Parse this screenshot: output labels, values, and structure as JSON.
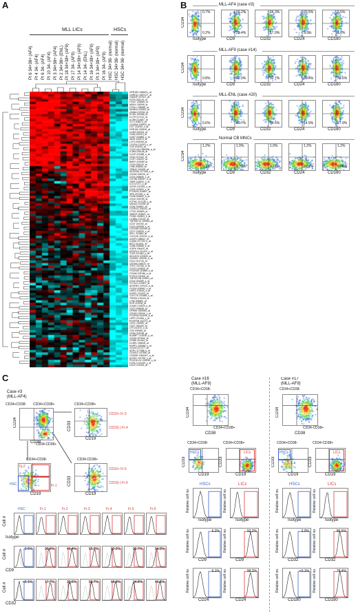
{
  "panelA": {
    "letter": "A",
    "group_mll": "MLL LICs",
    "group_hsc": "HSCs",
    "samples": [
      "Pt 6 34+38+ (AF4)",
      "Pt 4 34- (AF4)",
      "Pt 6 34- (AF4)",
      "Pt 10 34- (AF4)",
      "Pt 3 34+38+ (AF4)",
      "Pt 2 34+38+ (ENL)",
      "Pt 18 34+38+ (AF9)",
      "Pt 17 34- (AF9)",
      "Pt 14 34+38+ (AF9)",
      "Pt 14 34- (ENL)",
      "Pt 16 34+38+ (AF9)",
      "Pt 3 34+38+ (AF9)",
      "Pt 16 34- (AF9)",
      "HSC 34+38- (normal)",
      "HSC 34+38- (normal)",
      "HSC 34+38- (normal)"
    ],
    "genes": [
      "GPR183 1556321_at",
      "CARD11 1557127_at",
      "CMAHP 207671_at",
      "FGF9 239179_at",
      "ITGA7 204889_at",
      "MDK4 228095_at",
      "FCRL1 235988_at",
      "NKMH4 223003_at",
      "LEA6A 219154_at",
      "ECM1 209365_at",
      "IL17R 217412_at",
      "IL1RN 212657_at",
      "FLT3 206674_at",
      "CD300A 209933_at",
      "CD7 214049_x_at",
      "GPR183 205419_at",
      "IL2RA 206341_at",
      "CD84 209113_at",
      "IL6ST 204864_s_at",
      "INGR 228370_at",
      "LCP2 205269_at",
      "CXCR4 211919_s_at",
      "CD9 201005_at",
      "CLEC12A 1552398_a_at",
      "IL3RA 206148_at",
      "IL21R 221658_s_at",
      "CD22 217422_at",
      "CCR7 206337_at",
      "BMP2 205289_at",
      "CD33 206120_at",
      "LY86 205859_at",
      "GRB10 209409_at",
      "ADGRG6 227266_s_at",
      "CD180 206206_at",
      "CD24 208650_s_at",
      "CD79B 205297_s_at",
      "TARP 216920_s_at",
      "IL3 217371_s_at",
      "IGF2R 201393_s_at",
      "CD32 210992_x_at",
      "PTGER4 204897_at",
      "SPN 207005_s_at",
      "CD38 205692_s_at",
      "CD1D 205789_at",
      "PTPRC 207238_s_at",
      "MS4A3 210254_at",
      "CD52 204661_at",
      "FCER1G 204232_at",
      "CTSG 205653_at",
      "HBEGF 203821_at",
      "ITGB2 202803_s_at",
      "LILRB4 210152_at",
      "TNFRSF14 209354_at",
      "CD37 204192_at",
      "CD19 206398_s_at",
      "CSF2RB 205159_at",
      "CD72 215925_s_at",
      "SELL 204563_at",
      "CLEC2D 220132_s_at",
      "ULBP2 238542_at",
      "ICAM4 207194_s_at",
      "BST2 201641_at",
      "CD86 205686_s_at",
      "IGSF6 206420_at",
      "KIR2DL4 211410_x_at",
      "TLR4 221060_s_at",
      "SIGLEC9 220509_at",
      "CD300C 206760_s_at",
      "CD14 201743_at",
      "CRTAM 206914_at",
      "TFRC 207332_s_at",
      "CD274 223834_at",
      "FCGR2B 210889_s_at",
      "ITGAM 205786_s_at",
      "FCRL5 224405_at",
      "TNFSF13B 223501_at",
      "CD44 204489_s_at",
      "FLT3LG 210607_at",
      "ADGRE2 207610_s_at",
      "CD200 209582_s_at",
      "LAIR1 210644_s_at",
      "ULBP1 221323_at",
      "CLEC7A 221698_s_at",
      "TREM1 219434_at",
      "LY96 206584_at",
      "KDR 203934_at",
      "ICAM2 213620_s_at",
      "CD70 206508_at",
      "GPR65 1559263_at",
      "CD163 215049_x_at",
      "FCGR3A 204006_s_at",
      "LEPR 211356_x_at",
      "PDGFRB 202273_at",
      "CD1C 205987_at",
      "CD27 206150_at",
      "LY9 210370_s_at",
      "CD5 206485_at",
      "CD8A 205758_at",
      "SLAMF7 219159_s_at",
      "CD160 207840_at",
      "GZMB 210164_at",
      "IL18R1 206618_at",
      "ENPP1 205066_s_at",
      "CD209 207277_at",
      "NCR1 217088_s_at",
      "CD40LG 207892_at",
      "CD300E 1552457_a_at",
      "KLRD1 207795_s_at",
      "PDCD1LG2 220049_s_at",
      "FCRL2 221239_s_at",
      "CD1E 215784_at"
    ]
  },
  "panelB": {
    "letter": "B",
    "rows": [
      {
        "title": "MLL-AF4 (case #3)",
        "ylabel": "CD34",
        "labels": [
          "Isotype",
          "CD9",
          "CD32",
          "CD24",
          "CD180"
        ],
        "q": [
          [
            "0.7%",
            "0.2%"
          ],
          [
            "69.2%",
            "20.4%"
          ],
          [
            "56.3%",
            "17.9%"
          ],
          [
            "20.5%",
            "5.3%"
          ],
          [
            "5.5%",
            "5.6%"
          ]
        ]
      },
      {
        "title": "MLL-AF9 (case #14)",
        "ylabel": "CD34",
        "labels": [
          "Isotype",
          "CD9",
          "CD32",
          "CD24",
          "CD180"
        ],
        "q": [
          [
            "",
            "0.8%"
          ],
          [
            "",
            "42.0%"
          ],
          [
            "",
            "92.7%"
          ],
          [
            "",
            "99.4%"
          ],
          [
            "",
            "59.6%"
          ]
        ]
      },
      {
        "title": "MLL-ENL (case #20)",
        "ylabel": "CD34",
        "labels": [
          "Isotype",
          "CD9",
          "CD32",
          "CD24",
          "CD180"
        ],
        "q": [
          [
            "",
            "0.6%"
          ],
          [
            "",
            "49.7%"
          ],
          [
            "",
            "54.5%"
          ],
          [
            "",
            "14.9%"
          ],
          [
            "",
            "27.9%"
          ]
        ]
      },
      {
        "title": "Normal CB MNCs",
        "ylabel": "CD34",
        "labels": [
          "Isotype",
          "CD9",
          "CD32",
          "CD24",
          "CD180"
        ],
        "q": [
          [
            "1.2%",
            "0.1%"
          ],
          [
            "1.0%",
            "0.22%"
          ],
          [
            "1.0%",
            "0.16%"
          ],
          [
            "1.2%",
            "0.07%"
          ],
          [
            "1.2%",
            "0.06%"
          ]
        ]
      }
    ]
  },
  "panelC": {
    "letter": "C",
    "case3": {
      "title1": "Case #3",
      "title2": "(MLL-AF4)",
      "gate_neg": "CD34+CD38-",
      "gate_pos": "CD34+CD38+",
      "gate_cd34neg": "CD34-CD38+",
      "ax_cd34": "CD34",
      "ax_cd38": "CD38",
      "ax_cd33": "CD33",
      "ax_cd19": "CD19",
      "fr3": "CD33+ Fr.3",
      "fr4": "CD33(-) Fr.4",
      "fr5": "CD33+ Fr.5",
      "fr6": "CD33(-) Fr.6",
      "fr2": "Fr.2",
      "fr1": "Fr.1",
      "hsc": "HSC",
      "sub_neg": "CD34+CD38-",
      "sub_neg2": "CD34+CD38+",
      "sub_neg3": "CD34-CD38+",
      "hist_cols": [
        "HSC",
        "Fr.1",
        "Fr.2",
        "Fr.3",
        "Fr.4",
        "Fr.5",
        "Fr.6"
      ],
      "cellno": "Cell #",
      "rows": [
        {
          "marker": "Isotype",
          "vals": [
            "",
            "",
            "",
            "",
            "",
            "",
            ""
          ]
        },
        {
          "marker": "CD9",
          "vals": [
            "3.6%",
            "99.9%",
            "40.4%",
            "65.3%",
            "92.2%",
            "52.7%",
            "94.0%"
          ]
        },
        {
          "marker": "CD32",
          "vals": [
            "<0.1%",
            "17.7%",
            "39.6%",
            "69.7%",
            "48.8%",
            "94.8%",
            "46.2%"
          ]
        }
      ]
    },
    "case16": {
      "title1": "Case #16",
      "title2": "(MLL-AF9)",
      "gate_neg": "CD34+CD38-",
      "gate_pos": "CD34+CD38+",
      "ax_cd34": "CD34",
      "ax_cd38": "CD38",
      "ax_cd33": "CD33",
      "ax_cd19": "CD19",
      "sub_hsc": "HSCs",
      "sub_lic": "LICs",
      "ylab": "Relative cell no.",
      "hsc_vals": [
        "",
        "6.2%",
        "6.1%"
      ],
      "lic_vals": [
        "",
        "92.2%",
        "98.2%"
      ],
      "markers": [
        "Isotype",
        "CD9",
        "CD24"
      ]
    },
    "case17": {
      "title1": "Case #17",
      "title2": "(MLL-AF9)",
      "gate_neg": "CD34+CD38-",
      "gate_pos": "CD34-CD38+",
      "ax_cd34": "CD34",
      "ax_cd38": "CD38",
      "ax_cd33": "CD33",
      "ax_cd19": "CD19",
      "sub_hsc": "HSCs",
      "sub_lic": "LICs",
      "ylab": "Relative cell no.",
      "hsc_vals": [
        "",
        "2.0%",
        "<0.1%"
      ],
      "lic_vals": [
        "",
        "86.6%",
        "78.4%"
      ],
      "markers": [
        "Isotype",
        "CD32",
        "CD180"
      ]
    }
  },
  "colors": {
    "heat_red": "#ff0000",
    "heat_black": "#000000",
    "heat_cyan": "#00ffff",
    "hsc_blue": "#3a62c9",
    "lic_red": "#d83a3a"
  }
}
